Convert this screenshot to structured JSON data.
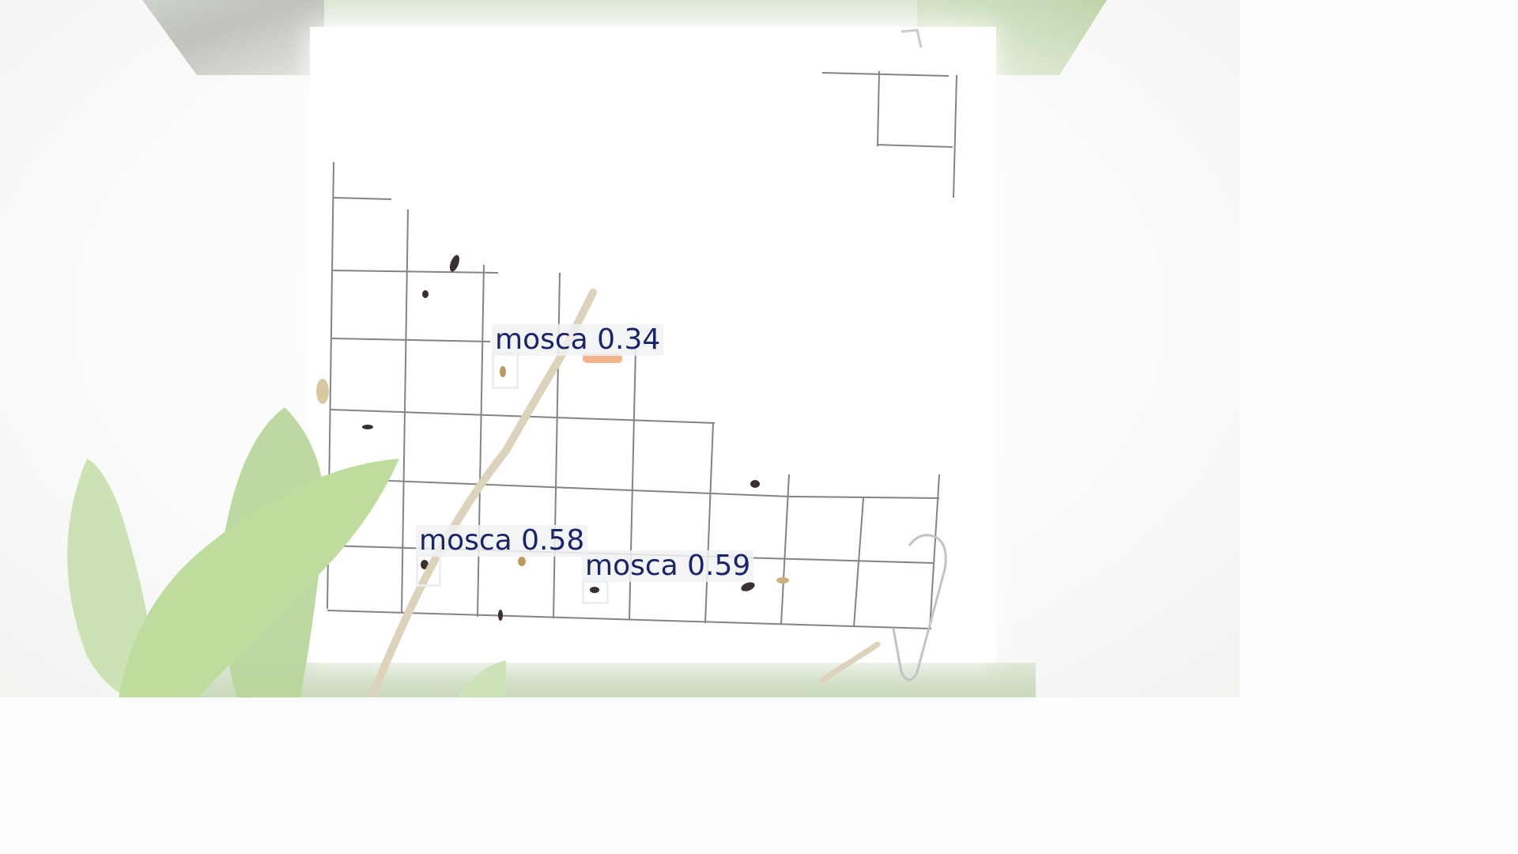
{
  "scene": {
    "subject": "yellow sticky insect trap with grid, olive branch in foreground",
    "detection_color": "#1a2466"
  },
  "detections": [
    {
      "label": "mosca 0.34",
      "class": "mosca",
      "confidence": 0.34
    },
    {
      "label": "mosca 0.58",
      "class": "mosca",
      "confidence": 0.58
    },
    {
      "label": "mosca 0.59",
      "class": "mosca",
      "confidence": 0.59
    }
  ]
}
